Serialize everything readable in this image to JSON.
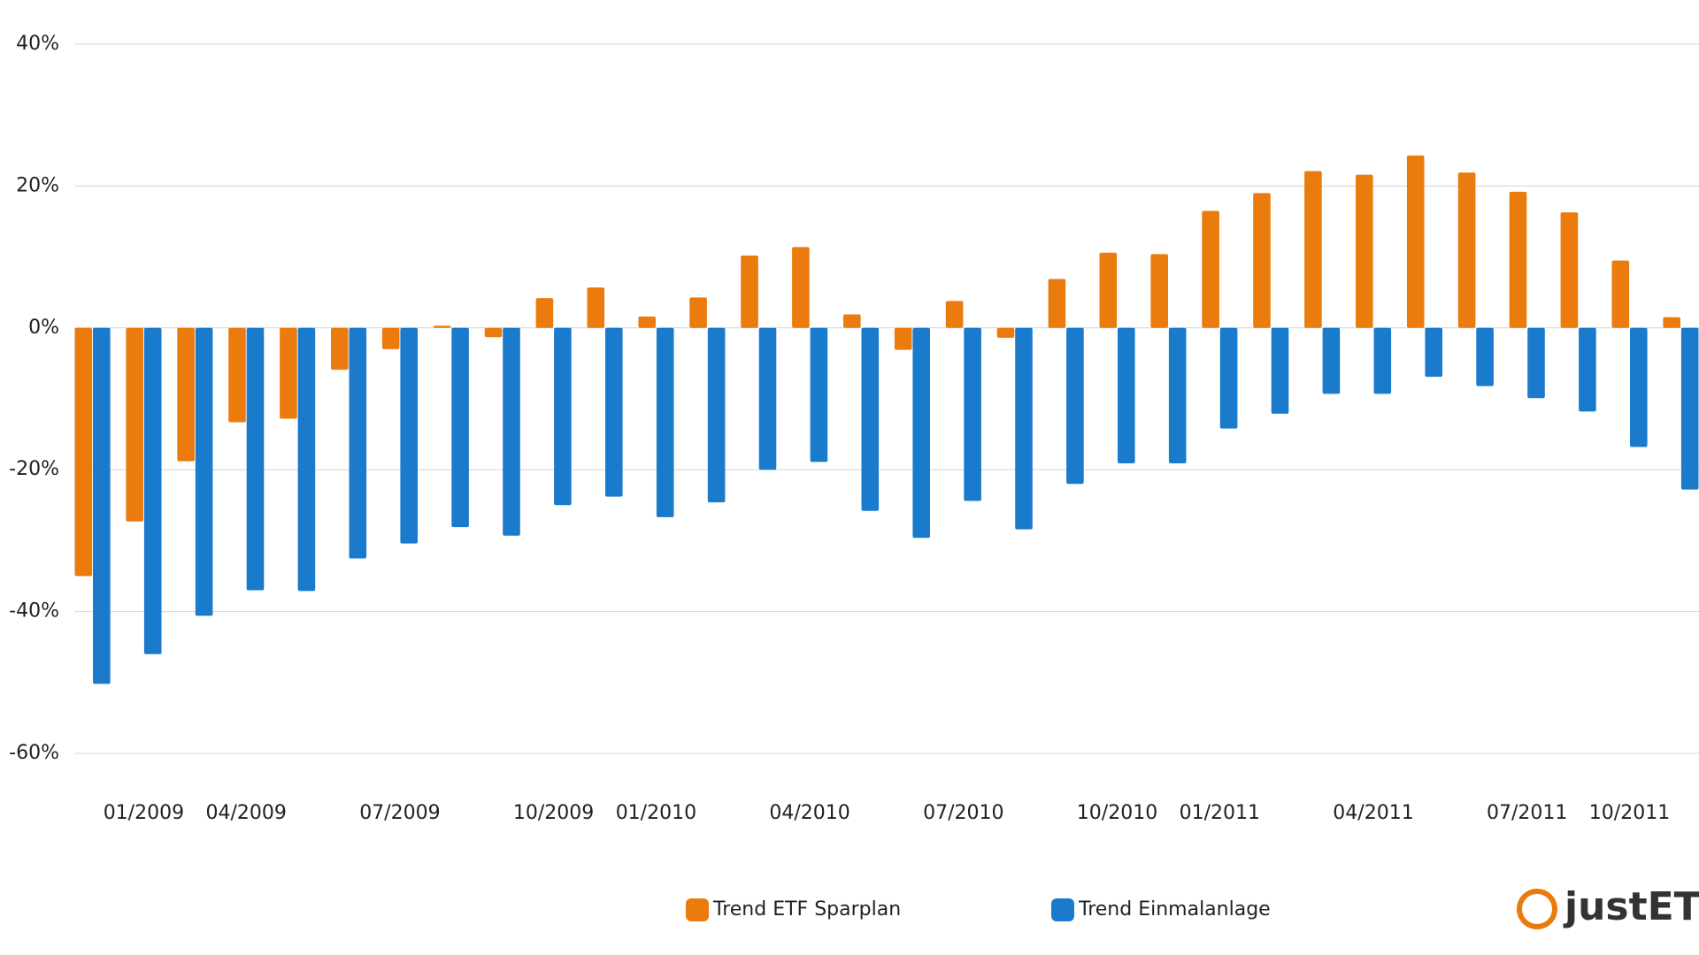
{
  "chart_data": {
    "type": "bar",
    "categories": [
      null,
      "01/2009",
      null,
      "04/2009",
      null,
      null,
      "07/2009",
      null,
      null,
      "10/2009",
      null,
      "01/2010",
      null,
      null,
      "04/2010",
      null,
      null,
      "07/2010",
      null,
      null,
      "10/2010",
      null,
      "01/2011",
      null,
      null,
      "04/2011",
      null,
      null,
      "07/2011",
      null,
      "10/2011",
      null
    ],
    "series": [
      {
        "name": "Trend ETF Sparplan",
        "color": "#ea7b0c",
        "values": [
          -35,
          -27.3,
          -18.8,
          -13.3,
          -12.8,
          -5.9,
          -3,
          0.3,
          -1.3,
          4.2,
          5.7,
          1.6,
          4.3,
          10.2,
          11.4,
          1.9,
          -3.1,
          3.8,
          -1.4,
          6.9,
          10.6,
          10.4,
          16.5,
          19,
          22.1,
          21.6,
          24.3,
          21.9,
          19.2,
          16.3,
          9.5,
          1.5
        ]
      },
      {
        "name": "Trend Einmalanlage",
        "color": "#1a7acb",
        "values": [
          -50.2,
          -46,
          -40.6,
          -37,
          -37.1,
          -32.5,
          -30.4,
          -28.1,
          -29.3,
          -25,
          -23.8,
          -26.7,
          -24.6,
          -20,
          -18.9,
          -25.8,
          -29.6,
          -24.4,
          -28.4,
          -22,
          -19.1,
          -19.1,
          -14.2,
          -12.1,
          -9.3,
          -9.3,
          -6.9,
          -8.2,
          -9.9,
          -11.8,
          -16.8,
          -22.8
        ]
      }
    ],
    "ylim": [
      -60,
      40
    ],
    "yticks": [
      {
        "value": -60,
        "label": "-60%"
      },
      {
        "value": -40,
        "label": "-40%"
      },
      {
        "value": -20,
        "label": "-20%"
      },
      {
        "value": 0,
        "label": "0%"
      },
      {
        "value": 20,
        "label": "20%"
      },
      {
        "value": 40,
        "label": "40%"
      }
    ],
    "grid": true,
    "legend": "bottom",
    "logo": "justETF"
  }
}
